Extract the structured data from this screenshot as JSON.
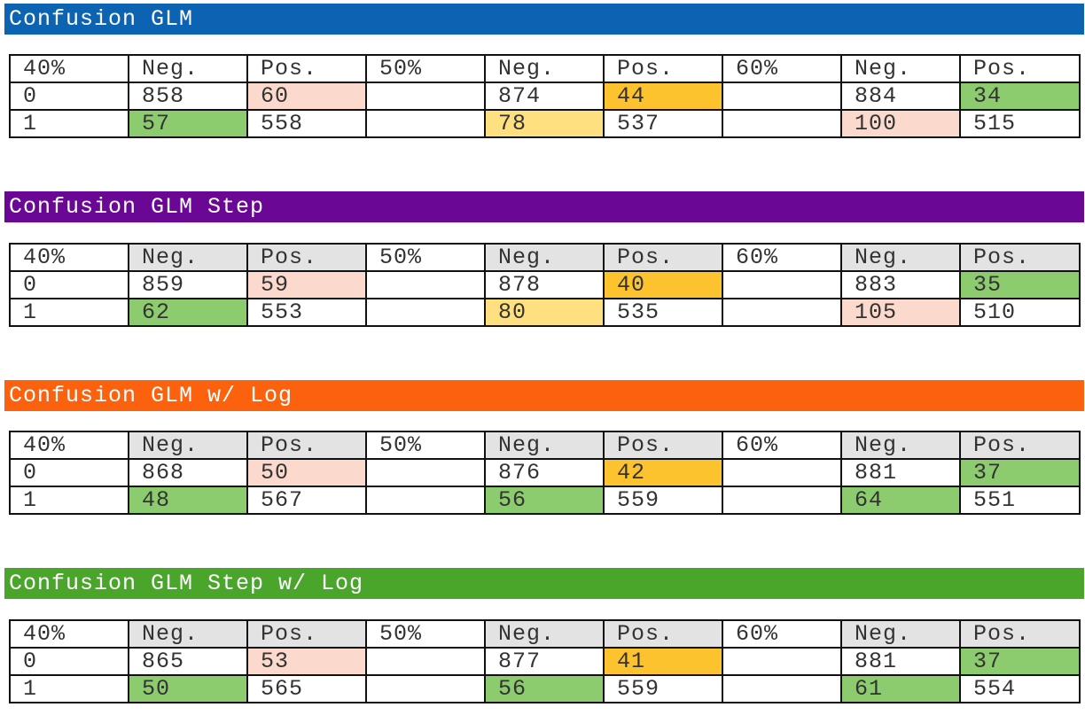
{
  "colors": {
    "glm": "#0b63b1",
    "glm_step": "#6a0795",
    "glm_log": "#fc620d",
    "glm_step_log": "#4aa62b",
    "salmon": "#fbd9cc",
    "amber": "#fdc32f",
    "yellow": "#fee081",
    "green": "#8ccc6e",
    "gray": "#e3e3e3"
  },
  "sections": [
    {
      "title": "Confusion GLM",
      "header_row": [
        "40%",
        "Neg.",
        "Pos.",
        "50%",
        "Neg.",
        "Pos.",
        "60%",
        "Neg.",
        "Pos."
      ],
      "rows": [
        [
          "0",
          "858",
          "60",
          "",
          "874",
          "44",
          "",
          "884",
          "34"
        ],
        [
          "1",
          "57",
          "558",
          "",
          "78",
          "537",
          "",
          "100",
          "515"
        ]
      ]
    },
    {
      "title": "Confusion GLM Step",
      "header_row": [
        "40%",
        "Neg.",
        "Pos.",
        "50%",
        "Neg.",
        "Pos.",
        "60%",
        "Neg.",
        "Pos."
      ],
      "rows": [
        [
          "0",
          "859",
          "59",
          "",
          "878",
          "40",
          "",
          "883",
          "35"
        ],
        [
          "1",
          "62",
          "553",
          "",
          "80",
          "535",
          "",
          "105",
          "510"
        ]
      ]
    },
    {
      "title": "Confusion GLM w/ Log",
      "header_row": [
        "40%",
        "Neg.",
        "Pos.",
        "50%",
        "Neg.",
        "Pos.",
        "60%",
        "Neg.",
        "Pos."
      ],
      "rows": [
        [
          "0",
          "868",
          "50",
          "",
          "876",
          "42",
          "",
          "881",
          "37"
        ],
        [
          "1",
          "48",
          "567",
          "",
          "56",
          "559",
          "",
          "64",
          "551"
        ]
      ]
    },
    {
      "title": "Confusion GLM Step w/ Log",
      "header_row": [
        "40%",
        "Neg.",
        "Pos.",
        "50%",
        "Neg.",
        "Pos.",
        "60%",
        "Neg.",
        "Pos."
      ],
      "rows": [
        [
          "0",
          "865",
          "53",
          "",
          "877",
          "41",
          "",
          "881",
          "37"
        ],
        [
          "1",
          "50",
          "565",
          "",
          "56",
          "559",
          "",
          "61",
          "554"
        ]
      ]
    }
  ]
}
